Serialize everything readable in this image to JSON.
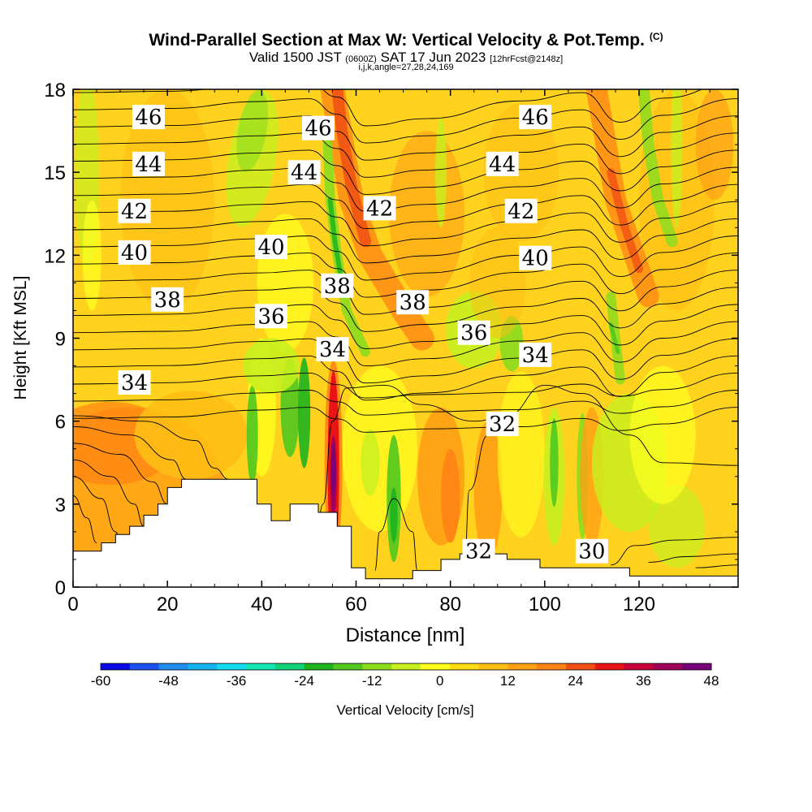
{
  "header": {
    "title": "Wind-Parallel Section at Max W: Vertical Velocity & Pot.Temp.",
    "copyright": "(C)",
    "valid_prefix": "Valid 1500 JST",
    "valid_utc": "(0600Z)",
    "valid_date": "SAT 17 Jun 2023",
    "forecast": "[12hrFcst@2148z]",
    "params": "i,j,k,angle=27,28,24,169"
  },
  "chart_data": {
    "type": "heatmap",
    "xlabel": "Distance [nm]",
    "ylabel": "Height [Kft MSL]",
    "xlim": [
      0,
      141
    ],
    "ylim": [
      0,
      18
    ],
    "x_ticks": [
      "0",
      "20",
      "40",
      "60",
      "80",
      "100",
      "120"
    ],
    "y_ticks": [
      "0",
      "3",
      "6",
      "9",
      "12",
      "15",
      "18"
    ],
    "colorbar": {
      "label": "Vertical Velocity [cm/s]",
      "min": -60,
      "max": 48,
      "step": 6,
      "tick_labels": [
        "-60",
        "-48",
        "-36",
        "-24",
        "-12",
        "0",
        "12",
        "24",
        "36",
        "48"
      ],
      "colors": [
        "#0a0ae6",
        "#1e50f0",
        "#1e8cf0",
        "#14b4f0",
        "#14dcf0",
        "#14e6b4",
        "#14d278",
        "#1eb41e",
        "#50c81e",
        "#8cdc1e",
        "#c8f01e",
        "#ffff1e",
        "#ffdc14",
        "#ffbe14",
        "#ffa014",
        "#ff8214",
        "#f05014",
        "#eb1414",
        "#c8003c",
        "#a0005a",
        "#780078"
      ]
    },
    "contour_variable": "Potential temperature",
    "contour_labels": [
      {
        "value": "46",
        "x": 16,
        "y": 17.0
      },
      {
        "value": "46",
        "x": 52,
        "y": 16.6
      },
      {
        "value": "46",
        "x": 98,
        "y": 17.0
      },
      {
        "value": "44",
        "x": 16,
        "y": 15.3
      },
      {
        "value": "44",
        "x": 49,
        "y": 15.0
      },
      {
        "value": "44",
        "x": 91,
        "y": 15.3
      },
      {
        "value": "42",
        "x": 13,
        "y": 13.6
      },
      {
        "value": "42",
        "x": 65,
        "y": 13.7
      },
      {
        "value": "42",
        "x": 95,
        "y": 13.6
      },
      {
        "value": "40",
        "x": 13,
        "y": 12.1
      },
      {
        "value": "40",
        "x": 42,
        "y": 12.3
      },
      {
        "value": "40",
        "x": 98,
        "y": 11.9
      },
      {
        "value": "38",
        "x": 20,
        "y": 10.4
      },
      {
        "value": "38",
        "x": 56,
        "y": 10.9
      },
      {
        "value": "38",
        "x": 72,
        "y": 10.3
      },
      {
        "value": "36",
        "x": 42,
        "y": 9.8
      },
      {
        "value": "36",
        "x": 85,
        "y": 9.2
      },
      {
        "value": "34",
        "x": 13,
        "y": 7.4
      },
      {
        "value": "34",
        "x": 55,
        "y": 8.6
      },
      {
        "value": "34",
        "x": 98,
        "y": 8.4
      },
      {
        "value": "32",
        "x": 91,
        "y": 5.9
      },
      {
        "value": "32",
        "x": 86,
        "y": 1.3
      },
      {
        "value": "30",
        "x": 110,
        "y": 1.3
      }
    ]
  }
}
